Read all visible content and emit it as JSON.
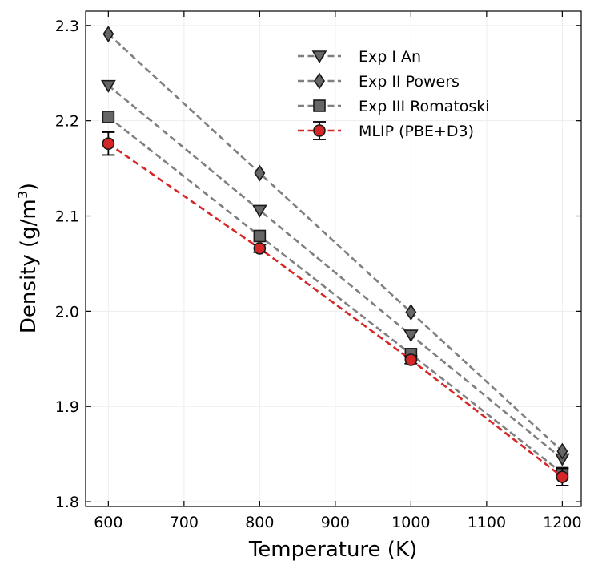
{
  "chart_data": {
    "type": "line",
    "title": "",
    "xlabel": "Temperature (K)",
    "ylabel_main": "Density (g/m",
    "ylabel_sup": "3",
    "ylabel_close": ")",
    "xlim": [
      570,
      1225
    ],
    "ylim": [
      1.795,
      2.315
    ],
    "xticks": [
      600,
      700,
      800,
      900,
      1000,
      1100,
      1200
    ],
    "yticks": [
      1.8,
      1.9,
      2.0,
      2.1,
      2.2,
      2.3
    ],
    "ytick_labels": [
      "1.8",
      "1.9",
      "2.0",
      "2.1",
      "2.2",
      "2.3"
    ],
    "grid": true,
    "legend_position": "top-right",
    "series": [
      {
        "name": "Exp I An",
        "marker": "triangle-down",
        "color": "#7f7f7f",
        "x": [
          600,
          800,
          1000,
          1200
        ],
        "values": [
          2.237,
          2.106,
          1.975,
          1.845
        ]
      },
      {
        "name": "Exp II Powers",
        "marker": "diamond",
        "color": "#7f7f7f",
        "x": [
          600,
          800,
          1000,
          1200
        ],
        "values": [
          2.291,
          2.145,
          1.999,
          1.853
        ]
      },
      {
        "name": "Exp III Romatoski",
        "marker": "square",
        "color": "#7f7f7f",
        "x": [
          600,
          800,
          1000,
          1200
        ],
        "values": [
          2.204,
          2.079,
          1.955,
          1.83
        ]
      },
      {
        "name": "MLIP (PBE+D3)",
        "marker": "circle",
        "color": "#d62728",
        "x": [
          600,
          800,
          1000,
          1200
        ],
        "values": [
          2.176,
          2.066,
          1.949,
          1.826
        ],
        "errors": [
          0.012,
          0.004,
          0.004,
          0.009
        ]
      }
    ]
  }
}
